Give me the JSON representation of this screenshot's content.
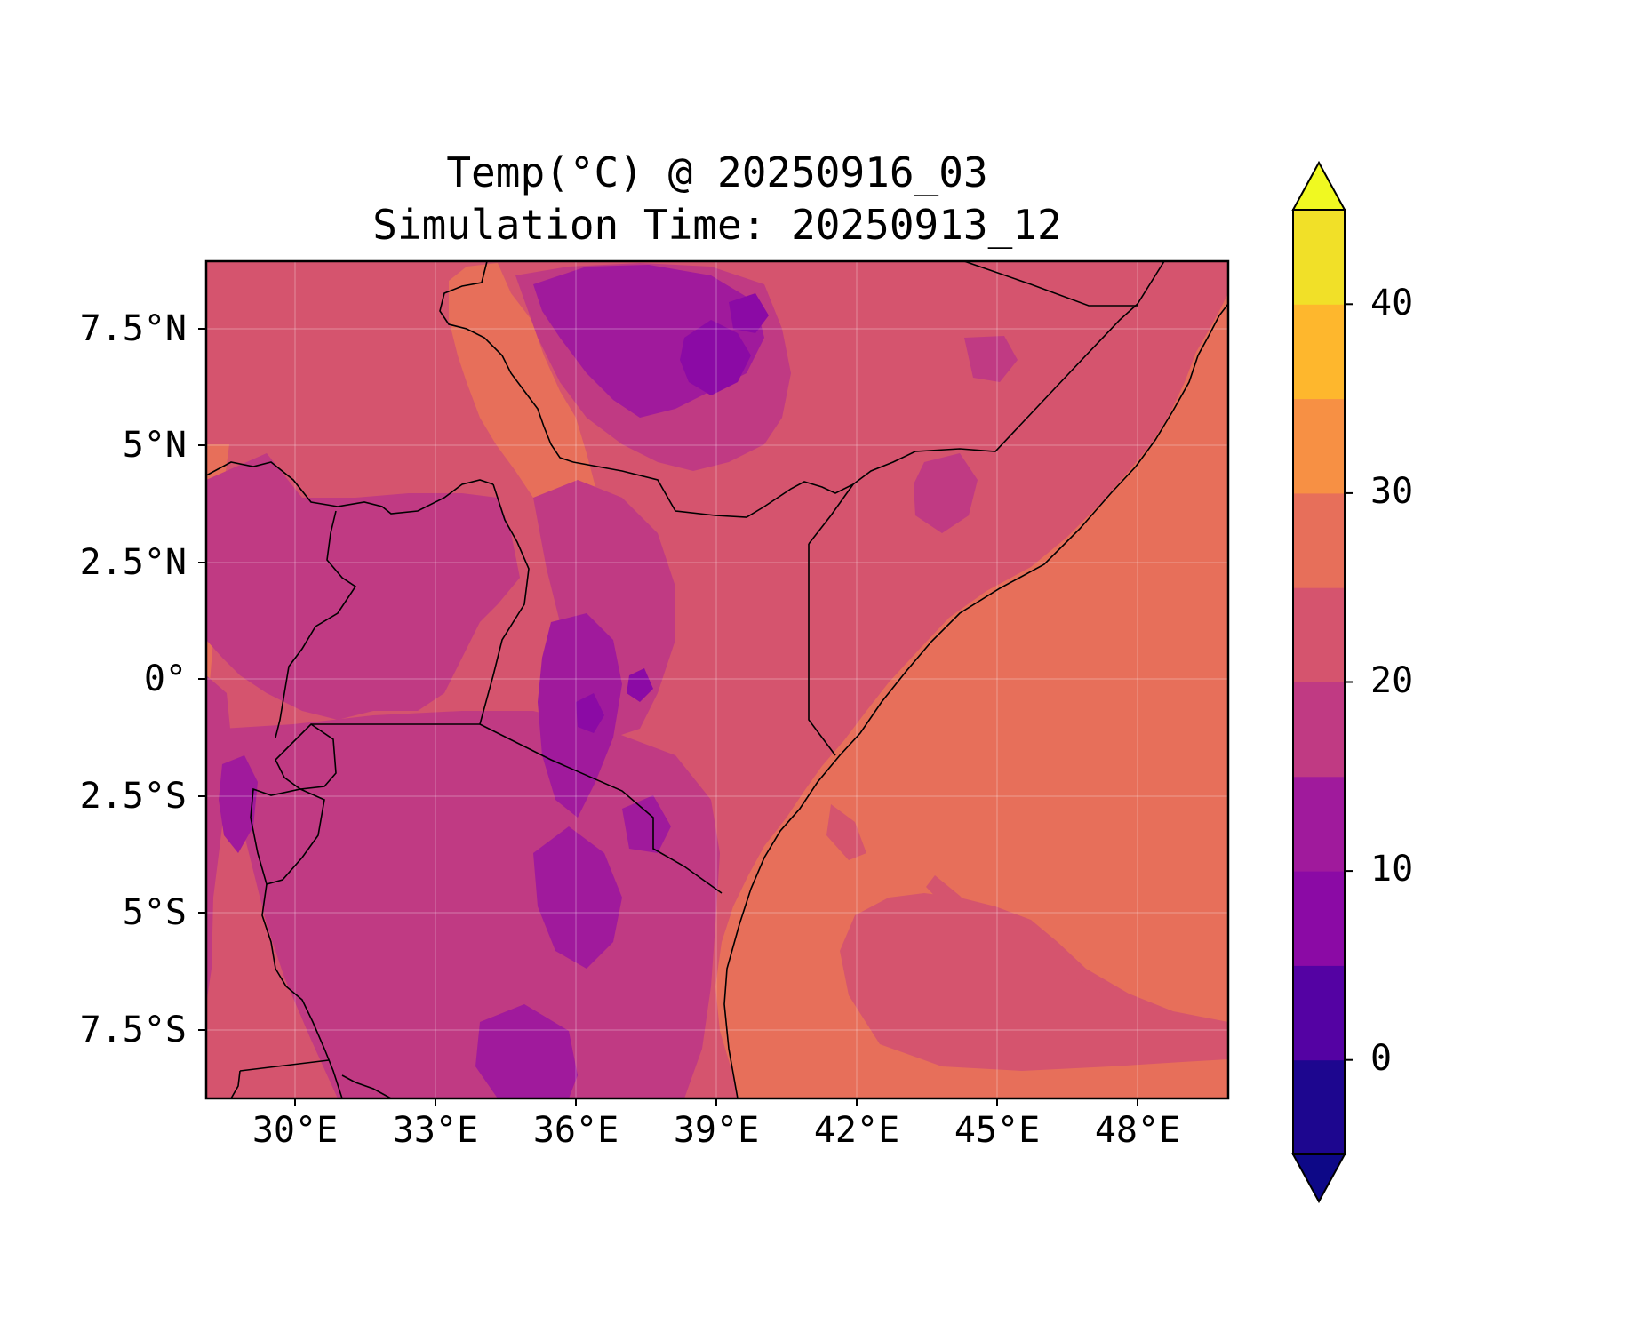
{
  "title_line_1": "Temp(°C) @ 20250916_03",
  "title_line_2": "Simulation Time: 20250913_12",
  "map": {
    "variable": "Temp",
    "units": "°C",
    "lon_range": [
      28.2,
      50.0
    ],
    "lat_range": [
      -9.0,
      8.9
    ],
    "lon_ticks": [
      {
        "value": 30,
        "label": "30°E"
      },
      {
        "value": 33,
        "label": "33°E"
      },
      {
        "value": 36,
        "label": "36°E"
      },
      {
        "value": 39,
        "label": "39°E"
      },
      {
        "value": 42,
        "label": "42°E"
      },
      {
        "value": 45,
        "label": "45°E"
      },
      {
        "value": 48,
        "label": "48°E"
      }
    ],
    "lat_ticks": [
      {
        "value": 7.5,
        "label": "7.5°N"
      },
      {
        "value": 5,
        "label": "5°N"
      },
      {
        "value": 2.5,
        "label": "2.5°N"
      },
      {
        "value": 0,
        "label": "0°"
      },
      {
        "value": -2.5,
        "label": "2.5°S"
      },
      {
        "value": -5,
        "label": "5°S"
      },
      {
        "value": -7.5,
        "label": "7.5°S"
      }
    ],
    "gridlines": true,
    "colormap": "plasma"
  },
  "colorbar": {
    "placement": "right",
    "extend": "both",
    "levels": [
      -5,
      0,
      5,
      10,
      15,
      20,
      25,
      30,
      35,
      40,
      45
    ],
    "colors": [
      "#1d068f",
      "#5402a3",
      "#8b0aa5",
      "#a01a9c",
      "#c03a83",
      "#d5546e",
      "#e76f5a",
      "#f79044",
      "#feb72d",
      "#f1e028"
    ],
    "under_color": "#0d0887",
    "over_color": "#f0f921",
    "tick_labels": [
      {
        "value": 0,
        "label": "0"
      },
      {
        "value": 10,
        "label": "10"
      },
      {
        "value": 20,
        "label": "20"
      },
      {
        "value": 30,
        "label": "30"
      },
      {
        "value": 40,
        "label": "40"
      }
    ]
  }
}
